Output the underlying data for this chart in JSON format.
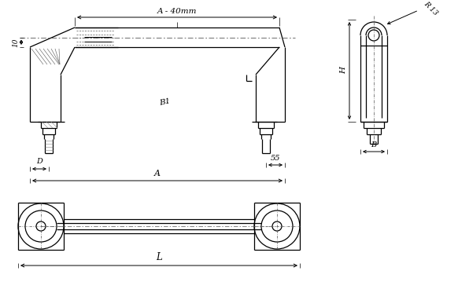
{
  "bg_color": "#ffffff",
  "line_color": "#000000",
  "figsize": [
    5.82,
    3.59
  ],
  "dpi": 100,
  "labels": {
    "A_40mm": "A - 40mm",
    "B1": "B1",
    "A": "A",
    "D": "D",
    "ten": "10",
    "fiftyfive": "55",
    "H": "H",
    "B": "B",
    "R13": "R 13",
    "L": "L"
  }
}
